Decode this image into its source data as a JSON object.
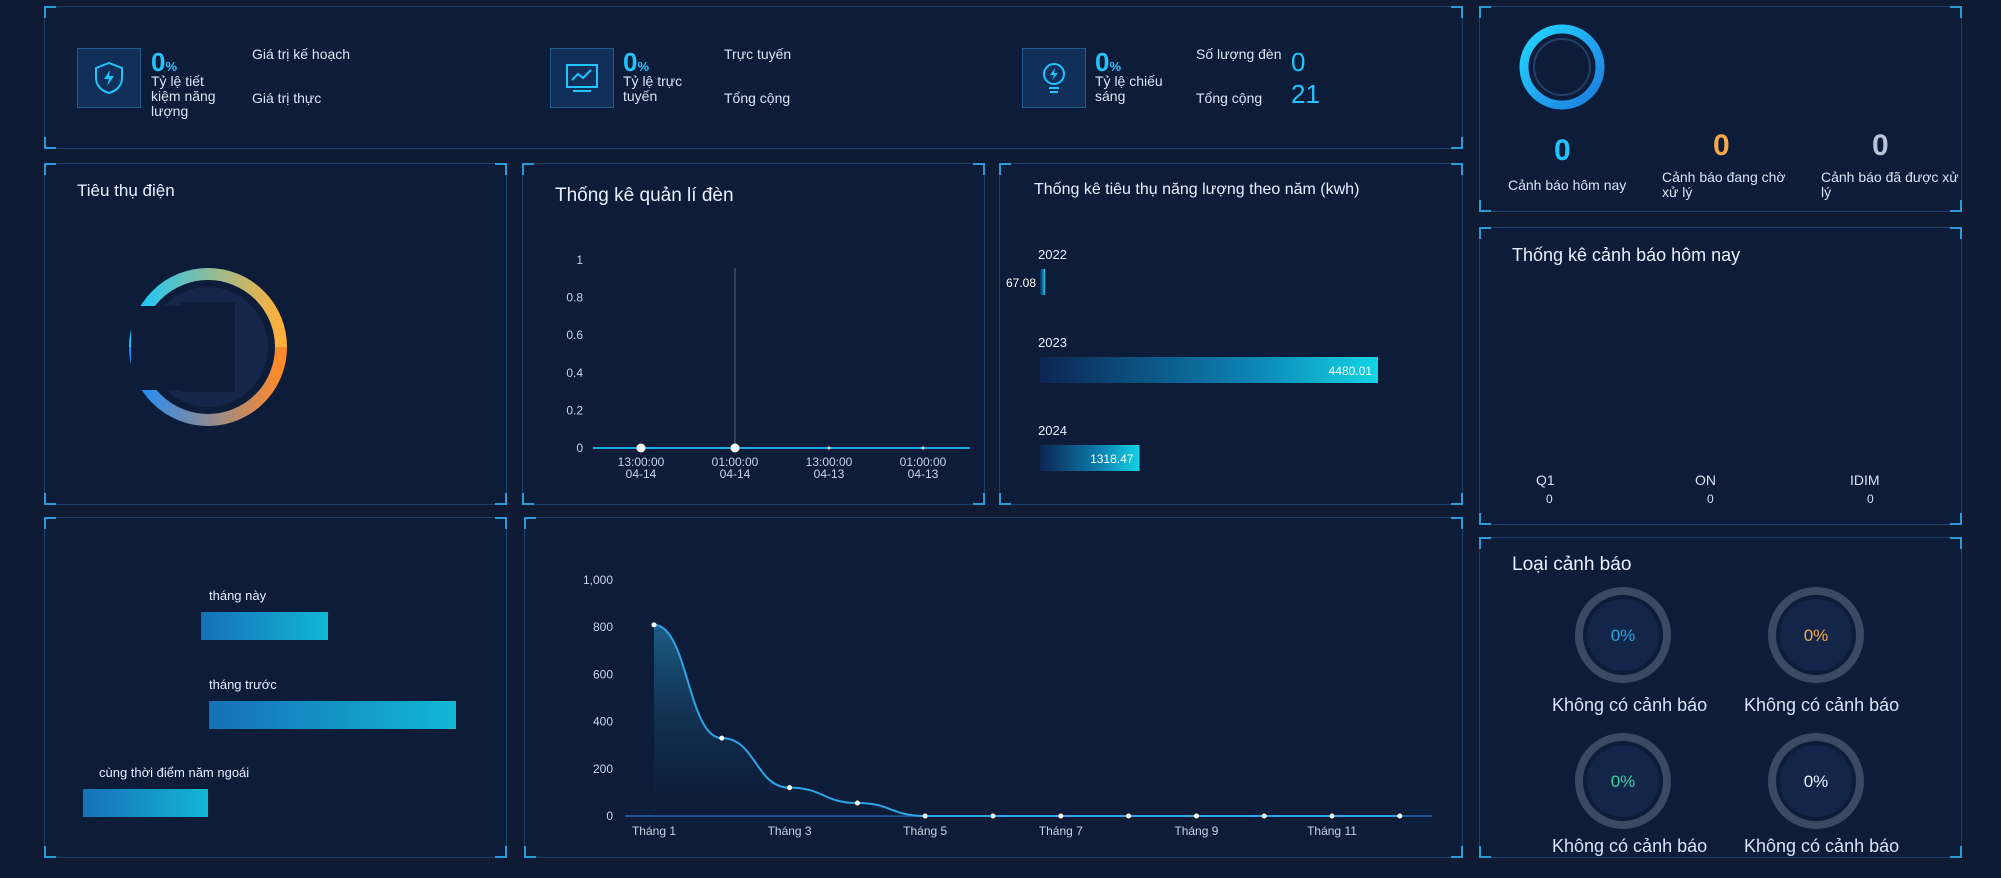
{
  "top_stats": {
    "energy": {
      "percent": "0",
      "unit": "%",
      "label": "Tỷ lệ tiết kiệm năng lượng",
      "plan_label": "Giá trị kế hoạch",
      "actual_label": "Giá trị thực"
    },
    "online": {
      "percent": "0",
      "unit": "%",
      "label": "Tỷ lệ trực tuyến",
      "online_label": "Trực tuyến",
      "total_label": "Tổng cộng"
    },
    "lighting": {
      "percent": "0",
      "unit": "%",
      "label": "Tỷ lệ chiếu sáng",
      "count_label": "Số lượng đèn",
      "count_value": "0",
      "total_label": "Tổng cộng",
      "total_value": "21"
    }
  },
  "alarm_summary": {
    "items": [
      {
        "value": "0",
        "label": "Cảnh báo hôm nay",
        "color": "#22c3ff"
      },
      {
        "value": "0",
        "label": "Cảnh báo đang chờ xử lý",
        "color": "#f5a94e"
      },
      {
        "value": "0",
        "label": "Cảnh báo đã được xử lý",
        "color": "#b8c4d6"
      }
    ]
  },
  "power_panel": {
    "title": "Tiêu thụ điện"
  },
  "lamp_panel": {
    "title": "Thống kê quản lí đèn"
  },
  "yearly_panel": {
    "title": "Thống kê tiêu thụ năng lượng theo năm (kwh)"
  },
  "today_alarm_panel": {
    "title": "Thống kê cảnh báo hôm nay",
    "categories": [
      {
        "name": "Q1",
        "value": "0"
      },
      {
        "name": "ON",
        "value": "0"
      },
      {
        "name": "IDIM",
        "value": "0"
      }
    ]
  },
  "alarm_type_panel": {
    "title": "Loại cảnh báo",
    "items": [
      {
        "pct": "0%",
        "label": "Không có cảnh báo",
        "color": "#2aa6e0"
      },
      {
        "pct": "0%",
        "label": "Không có cảnh báo",
        "color": "#f5a94e"
      },
      {
        "pct": "0%",
        "label": "Không có cảnh báo",
        "color": "#33d6a0"
      },
      {
        "pct": "0%",
        "label": "Không có cảnh báo",
        "color": "#e6eefc"
      }
    ]
  },
  "compare_panel": {
    "labels": [
      "tháng này",
      "tháng trước",
      "cùng thời điểm năm ngoái"
    ]
  },
  "chart_data": [
    {
      "type": "line",
      "x": [
        "13:00:00 04-14",
        "01:00:00 04-14",
        "13:00:00 04-13",
        "01:00:00 04-13"
      ],
      "y": [
        0,
        0,
        0,
        0
      ],
      "yticks": [
        "1",
        "0.8",
        "0.6",
        "0.4",
        "0.2",
        "0"
      ],
      "ylim": [
        0,
        1
      ]
    },
    {
      "type": "bar",
      "orientation": "horizontal",
      "categories": [
        "2022",
        "2023",
        "2024"
      ],
      "values": [
        67.08,
        4480.01,
        1318.47
      ],
      "value_labels": [
        "67.08",
        "4480.01",
        "1318.47"
      ]
    },
    {
      "type": "area",
      "x": [
        "Tháng 1",
        "Tháng 2",
        "Tháng 3",
        "Tháng 4",
        "Tháng 5",
        "Tháng 6",
        "Tháng 7",
        "Tháng 8",
        "Tháng 9",
        "Tháng 10",
        "Tháng 11",
        "Tháng 12"
      ],
      "xticks": [
        "Tháng 1",
        "Tháng 3",
        "Tháng 5",
        "Tháng 7",
        "Tháng 9",
        "Tháng 11"
      ],
      "values": [
        810,
        330,
        120,
        55,
        0,
        0,
        0,
        0,
        0,
        0,
        0,
        0
      ],
      "yticks": [
        "1,000",
        "800",
        "600",
        "400",
        "200",
        "0"
      ],
      "ylim": [
        0,
        1000
      ]
    },
    {
      "type": "bar",
      "orientation": "horizontal",
      "categories": [
        "tháng này",
        "tháng trước",
        "cùng thời điểm năm ngoái"
      ],
      "values": [
        127,
        247,
        125
      ]
    }
  ]
}
